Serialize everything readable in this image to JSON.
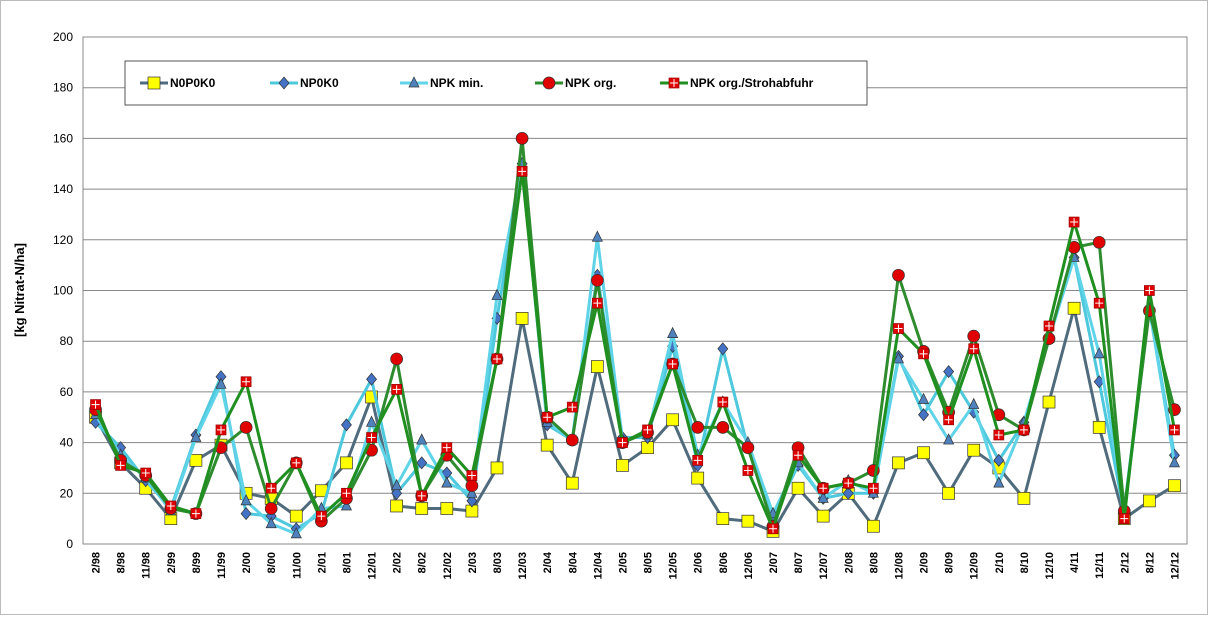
{
  "chart_data": {
    "type": "line",
    "y_label": "[kg Nitrat-N/ha]",
    "categories": [
      "2/98",
      "8/98",
      "11/98",
      "2/99",
      "8/99",
      "11/99",
      "2/00",
      "8/00",
      "11/00",
      "2/01",
      "8/01",
      "12/01",
      "2/02",
      "8/02",
      "12/02",
      "2/03",
      "8/03",
      "12/03",
      "2/04",
      "8/04",
      "12/04",
      "2/05",
      "8/05",
      "12/05",
      "2/06",
      "8/06",
      "12/06",
      "2/07",
      "8/07",
      "12/07",
      "2/08",
      "8/08",
      "12/08",
      "2/09",
      "8/09",
      "12/09",
      "2/10",
      "8/10",
      "12/10",
      "4/11",
      "12/11",
      "2/12",
      "8/12",
      "12/12"
    ],
    "series": [
      {
        "name": "N0P0K0",
        "color": "#4f6b7c",
        "marker_color": "#ffff00",
        "marker": "square",
        "values": [
          50,
          32,
          22,
          10,
          33,
          39,
          20,
          18,
          11,
          21,
          32,
          58,
          15,
          14,
          14,
          13,
          30,
          89,
          39,
          24,
          70,
          31,
          38,
          49,
          26,
          10,
          9,
          5,
          22,
          11,
          20,
          7,
          32,
          36,
          20,
          37,
          30,
          18,
          56,
          93,
          46,
          10,
          17,
          23
        ]
      },
      {
        "name": "NP0K0",
        "color": "#4dc8dc",
        "marker_color": "#4472c4",
        "marker": "diamond",
        "values": [
          48,
          38,
          25,
          14,
          43,
          66,
          12,
          11,
          6,
          12,
          47,
          65,
          20,
          32,
          28,
          17,
          89,
          150,
          47,
          41,
          106,
          42,
          42,
          78,
          31,
          77,
          38,
          11,
          31,
          18,
          20,
          20,
          74,
          51,
          68,
          52,
          33,
          48,
          81,
          113,
          64,
          12,
          93,
          35
        ]
      },
      {
        "name": "NPK min.",
        "color": "#5fd3e8",
        "marker_color": "#4f81bd",
        "marker": "triangle",
        "values": [
          51,
          35,
          26,
          13,
          42,
          63,
          17,
          8,
          4,
          14,
          15,
          48,
          23,
          41,
          24,
          20,
          98,
          150,
          48,
          41,
          121,
          41,
          43,
          83,
          35,
          56,
          40,
          12,
          32,
          18,
          25,
          20,
          73,
          57,
          41,
          55,
          24,
          48,
          81,
          113,
          75,
          14,
          93,
          32
        ]
      },
      {
        "name": "NPK org.",
        "color": "#2e8b2e",
        "marker_color": "#e00000",
        "marker": "circle",
        "values": [
          53,
          33,
          27,
          14,
          12,
          38,
          46,
          14,
          32,
          9,
          18,
          37,
          73,
          19,
          35,
          23,
          73,
          160,
          50,
          41,
          104,
          40,
          44,
          71,
          46,
          46,
          38,
          7,
          38,
          22,
          24,
          29,
          106,
          76,
          52,
          82,
          51,
          45,
          81,
          117,
          119,
          13,
          92,
          53
        ]
      },
      {
        "name": "NPK org./Strohabfuhr",
        "color": "#1f8f1f",
        "marker_color": "#e00000",
        "marker": "cross-square",
        "values": [
          55,
          31,
          28,
          15,
          12,
          45,
          64,
          22,
          32,
          11,
          20,
          42,
          61,
          19,
          38,
          27,
          73,
          147,
          50,
          54,
          95,
          40,
          45,
          71,
          33,
          56,
          29,
          6,
          35,
          22,
          24,
          22,
          85,
          75,
          49,
          77,
          43,
          45,
          86,
          127,
          95,
          10,
          100,
          45
        ]
      }
    ],
    "ylim": [
      0,
      200
    ],
    "yticks": [
      0,
      20,
      40,
      60,
      80,
      100,
      120,
      140,
      160,
      180,
      200
    ],
    "grid": true
  }
}
